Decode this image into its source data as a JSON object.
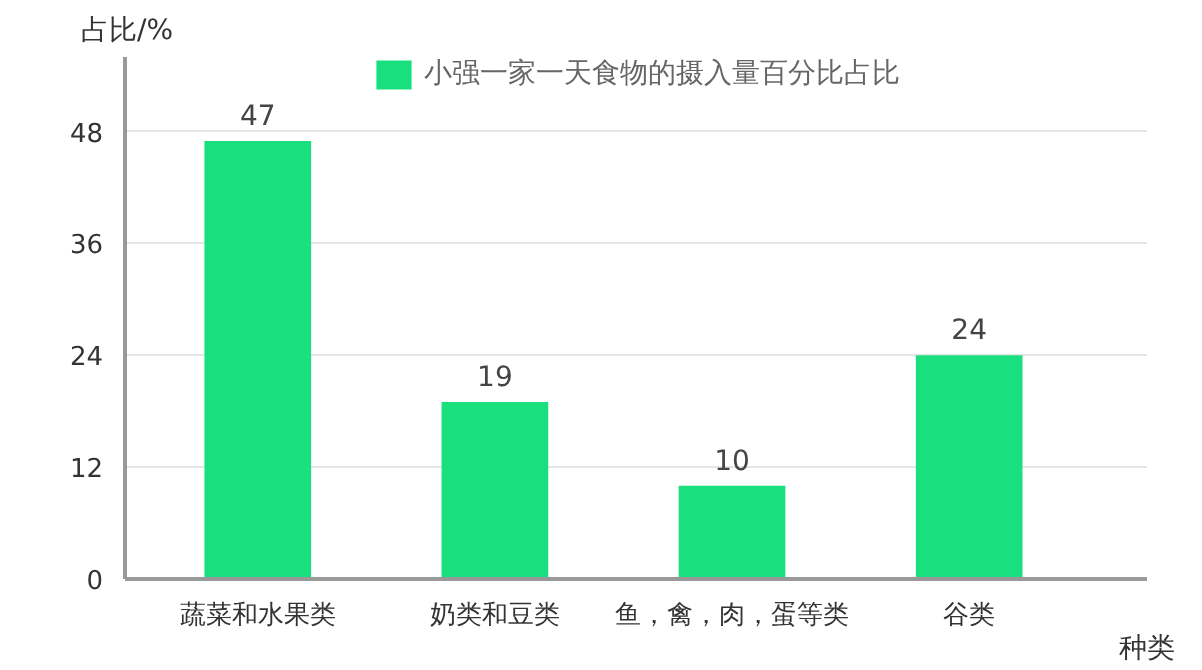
{
  "chart_data": {
    "type": "bar",
    "ylabel": "占比/%",
    "xlabel": "种类",
    "categories": [
      "蔬菜和水果类",
      "奶类和豆类",
      "鱼，禽，肉，蛋等类",
      "谷类"
    ],
    "series": [
      {
        "name": "小强一家一天食物的摄入量百分比占比",
        "color": "#1adf7f",
        "values": [
          47,
          19,
          10,
          24
        ]
      }
    ],
    "ylim": [
      0,
      56
    ],
    "yticks": [
      0,
      12,
      24,
      36,
      48
    ],
    "grid": "y",
    "legend": "top",
    "data_labels": true
  }
}
